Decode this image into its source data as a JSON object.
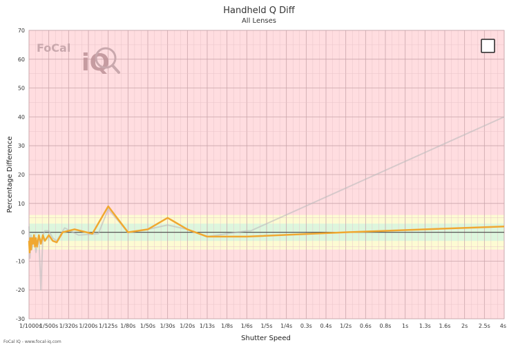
{
  "chart_data": {
    "type": "line",
    "title": "Handheld Q Diff",
    "subtitle": "All Lenses",
    "xlabel": "Shutter Speed",
    "ylabel": "Percentage Difference",
    "ylim": [
      -30,
      70
    ],
    "yticks": [
      -30,
      -20,
      -10,
      0,
      10,
      20,
      30,
      40,
      50,
      60,
      70
    ],
    "x_tick_labels": [
      "1/1000s",
      "1/500s",
      "1/320s",
      "1/200s",
      "1/125s",
      "1/80s",
      "1/50s",
      "1/30s",
      "1/20s",
      "1/13s",
      "1/8s",
      "1/6s",
      "1/5s",
      "1/4s",
      "0.3s",
      "0.4s",
      "1/2s",
      "0.6s",
      "0.8s",
      "1s",
      "1.3s",
      "1.6s",
      "2s",
      "2.5s",
      "4s"
    ],
    "x_tick_positions": [
      0,
      1,
      2,
      3,
      4,
      5,
      6,
      7,
      8,
      9,
      10,
      11,
      12,
      13,
      14,
      15,
      16,
      17,
      18,
      19,
      20,
      21,
      22,
      23,
      24
    ],
    "xlim": [
      0,
      24
    ],
    "bands": [
      {
        "from": -6,
        "to": 6,
        "color": "#fdfbd3"
      },
      {
        "from": -3,
        "to": 3,
        "color": "#ddf6dd"
      }
    ],
    "background_color": "#ffdde0",
    "grid": true,
    "legend": "none",
    "series": [
      {
        "color": "#bdbdbd",
        "x": [
          0,
          0.05,
          0.1,
          0.15,
          0.25,
          0.35,
          0.5,
          0.6,
          0.7,
          0.8,
          1.0,
          1.2,
          1.4,
          1.8,
          2.5,
          3.5,
          4.0,
          5.0,
          6.0,
          7.0,
          8.0,
          9.0,
          10.0,
          11.0,
          11.2,
          24
        ],
        "y": [
          2,
          -9,
          -1,
          -6,
          -2,
          -7,
          -2,
          -20,
          -1,
          0.5,
          0.5,
          -2,
          -3,
          1.5,
          -1,
          -0.5,
          8,
          0,
          1,
          2.5,
          1,
          -1.5,
          -0.5,
          0.5,
          0.5,
          40
        ]
      },
      {
        "color": "#f0a830",
        "x": [
          0,
          0.03,
          0.06,
          0.1,
          0.15,
          0.2,
          0.25,
          0.3,
          0.35,
          0.4,
          0.5,
          0.6,
          0.7,
          0.8,
          1.0,
          1.2,
          1.4,
          1.7,
          2.3,
          3.2,
          4.0,
          5.0,
          6.0,
          7.0,
          8.0,
          9.0,
          10.0,
          11.0,
          16.0,
          24
        ],
        "y": [
          -3,
          -7,
          -2,
          -6,
          -2,
          -4,
          -1,
          -5,
          -2,
          -5,
          -1,
          -4,
          -1,
          -3,
          -1,
          -3,
          -3.5,
          0,
          1,
          -0.5,
          9,
          0,
          1,
          5,
          1,
          -1.5,
          -1.5,
          -1.5,
          0,
          2
        ]
      }
    ],
    "baseline": 0,
    "logo": {
      "text": "FoCal",
      "mark": "iQ"
    },
    "footer_text": "FoCal IQ - www.focal-iq.com",
    "checkbox_checked": false
  }
}
